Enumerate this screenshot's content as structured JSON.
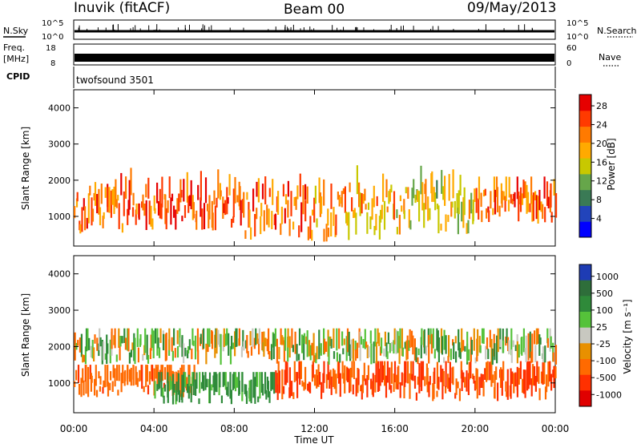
{
  "header": {
    "station": "Inuvik (fitACF)",
    "beam": "Beam 00",
    "date": "09/May/2013"
  },
  "panels": {
    "nsky": {
      "label": "N.Sky",
      "right_label": "N.Search",
      "left_ticks": [
        "10^5",
        "10^0"
      ],
      "right_ticks": [
        "10^5",
        "10^0"
      ]
    },
    "freq": {
      "label": "Freq.",
      "unit": "[MHz]",
      "right_label": "Nave",
      "left_ticks": [
        "18",
        "8"
      ],
      "right_ticks": [
        "60",
        "0"
      ]
    },
    "cpid": {
      "label": "CPID",
      "program": "twofsound 3501"
    }
  },
  "colors": {
    "power": [
      "#0000ff",
      "#2244bb",
      "#3a7a55",
      "#66a64a",
      "#c8c800",
      "#ffaa00",
      "#ff7a00",
      "#ff3a00",
      "#e60000"
    ],
    "velocity": [
      "#1e3cb4",
      "#2e6e3a",
      "#2f8a3a",
      "#55c23a",
      "#c8c8c0",
      "#e89000",
      "#ff6a00",
      "#ff3000",
      "#e00000"
    ]
  },
  "chart_data": [
    {
      "type": "heatmap",
      "title": "",
      "xlabel": "Time UT",
      "ylabel": "Slant Range [km]",
      "x_ticks": [
        "00:00",
        "04:00",
        "08:00",
        "12:00",
        "16:00",
        "20:00",
        "00:00"
      ],
      "x_range_hours": [
        0,
        24
      ],
      "ylim": [
        180,
        4500
      ],
      "y_ticks": [
        1000,
        2000,
        3000,
        4000
      ],
      "colorbar": {
        "label": "Power [dB]",
        "ticks": [
          "4",
          "8",
          "12",
          "16",
          "20",
          "24",
          "28"
        ],
        "range": [
          0,
          30
        ]
      },
      "bands": [
        {
          "time": [
            0,
            4
          ],
          "range_km": [
            500,
            2400
          ],
          "dominant_power_db": 24
        },
        {
          "time": [
            4,
            8
          ],
          "range_km": [
            600,
            2300
          ],
          "dominant_power_db": 26
        },
        {
          "time": [
            8,
            12
          ],
          "range_km": [
            300,
            2400
          ],
          "dominant_power_db": 24
        },
        {
          "time": [
            12,
            16
          ],
          "range_km": [
            300,
            2600
          ],
          "dominant_power_db": 20
        },
        {
          "time": [
            16,
            20
          ],
          "range_km": [
            500,
            2400
          ],
          "dominant_power_db": 16
        },
        {
          "time": [
            20,
            24
          ],
          "range_km": [
            800,
            2100
          ],
          "dominant_power_db": 24
        }
      ]
    },
    {
      "type": "heatmap",
      "title": "",
      "xlabel": "Time UT",
      "ylabel": "Slant Range [km]",
      "x_ticks": [
        "00:00",
        "04:00",
        "08:00",
        "12:00",
        "16:00",
        "20:00",
        "00:00"
      ],
      "x_range_hours": [
        0,
        24
      ],
      "ylim": [
        180,
        4500
      ],
      "y_ticks": [
        1000,
        2000,
        3000,
        4000
      ],
      "colorbar": {
        "label": "Velocity [m s⁻¹]",
        "ticks": [
          "1000",
          "500",
          "100",
          "25",
          "-25",
          "-100",
          "-500",
          "-1000"
        ],
        "range": [
          -1000,
          1000
        ]
      },
      "bands": [
        {
          "time": [
            0,
            6
          ],
          "range_km": [
            600,
            1500
          ],
          "dominant_velocity": -200
        },
        {
          "time": [
            4,
            10
          ],
          "range_km": [
            400,
            1300
          ],
          "dominant_velocity": 150
        },
        {
          "time": [
            10,
            24
          ],
          "range_km": [
            500,
            1600
          ],
          "dominant_velocity": -300
        },
        {
          "time": [
            0,
            24
          ],
          "range_km": [
            1500,
            2500
          ],
          "dominant_velocity": 0
        }
      ]
    }
  ]
}
